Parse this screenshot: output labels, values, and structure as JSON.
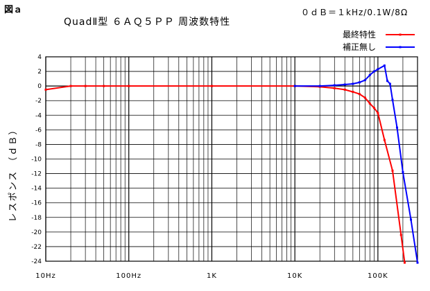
{
  "figure_label": "図ａ",
  "condition": "０ｄＢ＝１kHz/0.1W/8Ω",
  "chart_data": {
    "type": "line",
    "title": "QuadⅡ型 ６ＡＱ５ＰＰ 周波数特性",
    "xlabel": "",
    "ylabel": "レスポンス （ｄＢ）",
    "x_scale": "log",
    "xlim": [
      10,
      300000
    ],
    "ylim": [
      -24,
      4
    ],
    "grid": true,
    "legend_position": "top-right",
    "x_ticks": [
      {
        "value": 10,
        "label": "10Hz"
      },
      {
        "value": 100,
        "label": "100Hz"
      },
      {
        "value": 1000,
        "label": "1K"
      },
      {
        "value": 10000,
        "label": "10K"
      },
      {
        "value": 100000,
        "label": "100K"
      }
    ],
    "y_ticks": [
      4,
      2,
      0,
      -2,
      -4,
      -6,
      -8,
      -10,
      -12,
      -14,
      -16,
      -18,
      -20,
      -22,
      -24
    ],
    "series": [
      {
        "name": "最終特性",
        "color": "#ff0000",
        "points": [
          [
            10,
            -0.5
          ],
          [
            20,
            0
          ],
          [
            30,
            0
          ],
          [
            50,
            0
          ],
          [
            100,
            0
          ],
          [
            1000,
            0
          ],
          [
            10000,
            0
          ],
          [
            20000,
            -0.1
          ],
          [
            30000,
            -0.3
          ],
          [
            40000,
            -0.5
          ],
          [
            50000,
            -0.8
          ],
          [
            60000,
            -1.1
          ],
          [
            70000,
            -1.6
          ],
          [
            80000,
            -2.4
          ],
          [
            90000,
            -3.0
          ],
          [
            100000,
            -3.7
          ],
          [
            120000,
            -7.4
          ],
          [
            150000,
            -11.6
          ],
          [
            190000,
            -20.4
          ],
          [
            210000,
            -24.2
          ]
        ]
      },
      {
        "name": "補正無し",
        "color": "#0000ff",
        "points": [
          [
            10000,
            0
          ],
          [
            20000,
            0
          ],
          [
            30000,
            0.1
          ],
          [
            40000,
            0.2
          ],
          [
            50000,
            0.3
          ],
          [
            60000,
            0.5
          ],
          [
            70000,
            0.8
          ],
          [
            80000,
            1.5
          ],
          [
            90000,
            2.0
          ],
          [
            100000,
            2.3
          ],
          [
            120000,
            2.8
          ],
          [
            130000,
            0.7
          ],
          [
            140000,
            0.3
          ],
          [
            150000,
            -1.9
          ],
          [
            170000,
            -5.7
          ],
          [
            200000,
            -11.8
          ],
          [
            250000,
            -18.3
          ],
          [
            300000,
            -24.2
          ]
        ]
      }
    ]
  }
}
